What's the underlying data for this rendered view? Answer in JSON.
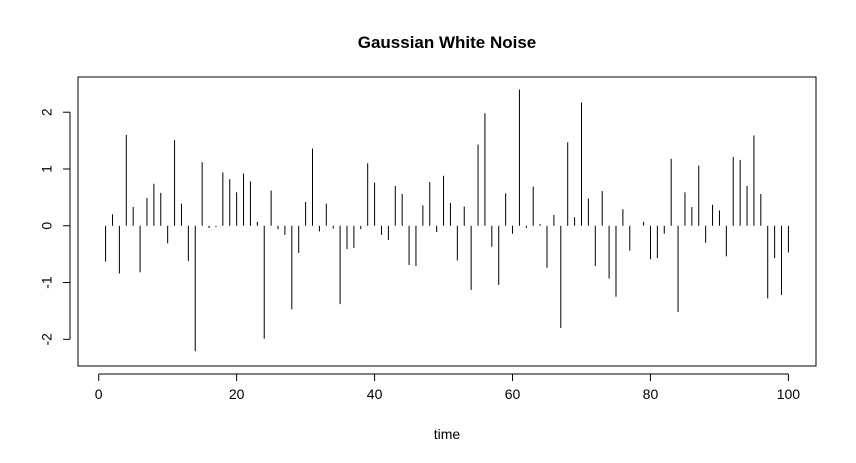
{
  "chart_data": {
    "type": "bar",
    "style": "histogram-lines",
    "title": "Gaussian White Noise",
    "xlabel": "time",
    "ylabel": "",
    "xlim": [
      -3,
      104
    ],
    "ylim": [
      -2.47,
      2.62
    ],
    "xticks": [
      0,
      20,
      40,
      60,
      80,
      100
    ],
    "yticks": [
      -2,
      -1,
      0,
      1,
      2
    ],
    "grid": false,
    "legend": "none",
    "line_color": "#000000",
    "x": [
      1,
      2,
      3,
      4,
      5,
      6,
      7,
      8,
      9,
      10,
      11,
      12,
      13,
      14,
      15,
      16,
      17,
      18,
      19,
      20,
      21,
      22,
      23,
      24,
      25,
      26,
      27,
      28,
      29,
      30,
      31,
      32,
      33,
      34,
      35,
      36,
      37,
      38,
      39,
      40,
      41,
      42,
      43,
      44,
      45,
      46,
      47,
      48,
      49,
      50,
      51,
      52,
      53,
      54,
      55,
      56,
      57,
      58,
      59,
      60,
      61,
      62,
      63,
      64,
      65,
      66,
      67,
      68,
      69,
      70,
      71,
      72,
      73,
      74,
      75,
      76,
      77,
      78,
      79,
      80,
      81,
      82,
      83,
      84,
      85,
      86,
      87,
      88,
      89,
      90,
      91,
      92,
      93,
      94,
      95,
      96,
      97,
      98,
      99,
      100
    ],
    "values": [
      -0.63,
      0.2,
      -0.84,
      1.6,
      0.33,
      -0.82,
      0.49,
      0.74,
      0.58,
      -0.31,
      1.51,
      0.39,
      -0.62,
      -2.21,
      1.12,
      -0.04,
      -0.02,
      0.94,
      0.82,
      0.59,
      0.92,
      0.78,
      0.07,
      -1.99,
      0.62,
      -0.06,
      -0.16,
      -1.47,
      -0.48,
      0.42,
      1.36,
      -0.1,
      0.39,
      -0.05,
      -1.38,
      -0.41,
      -0.39,
      -0.06,
      1.1,
      0.76,
      -0.16,
      -0.25,
      0.7,
      0.56,
      -0.69,
      -0.71,
      0.36,
      0.77,
      -0.11,
      0.88,
      0.4,
      -0.61,
      0.34,
      -1.13,
      1.43,
      1.98,
      -0.37,
      -1.04,
      0.57,
      -0.14,
      2.4,
      -0.04,
      0.69,
      0.03,
      -0.74,
      0.19,
      -1.8,
      1.47,
      0.15,
      2.17,
      0.48,
      -0.71,
      0.61,
      -0.93,
      -1.25,
      0.29,
      -0.44,
      0.0,
      0.07,
      -0.59,
      -0.57,
      -0.14,
      1.18,
      -1.52,
      0.59,
      0.33,
      1.06,
      -0.3,
      0.37,
      0.27,
      -0.54,
      1.21,
      1.16,
      0.7,
      1.59,
      0.56,
      -1.28,
      -0.57,
      -1.22,
      -0.47
    ]
  }
}
